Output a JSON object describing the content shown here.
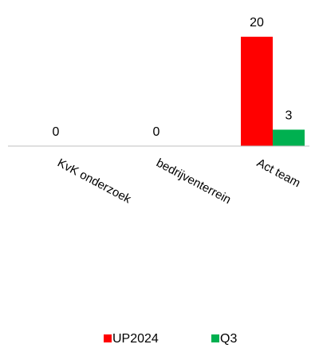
{
  "chart_data": {
    "type": "bar",
    "categories": [
      "KvK onderzoek",
      "bedrijventerrein",
      "Act team"
    ],
    "series": [
      {
        "name": "UP2024",
        "values": [
          0,
          0,
          20
        ],
        "color": "#FF0000"
      },
      {
        "name": "Q3",
        "values": [
          0,
          0,
          3
        ],
        "color": "#00B050"
      }
    ],
    "data_labels": [
      [
        "0",
        "0",
        "20"
      ],
      [
        "",
        "",
        "3"
      ]
    ],
    "ylim": [
      0,
      20
    ],
    "grid": false,
    "legend_position": "bottom",
    "title": "",
    "xlabel": "",
    "ylabel": ""
  }
}
